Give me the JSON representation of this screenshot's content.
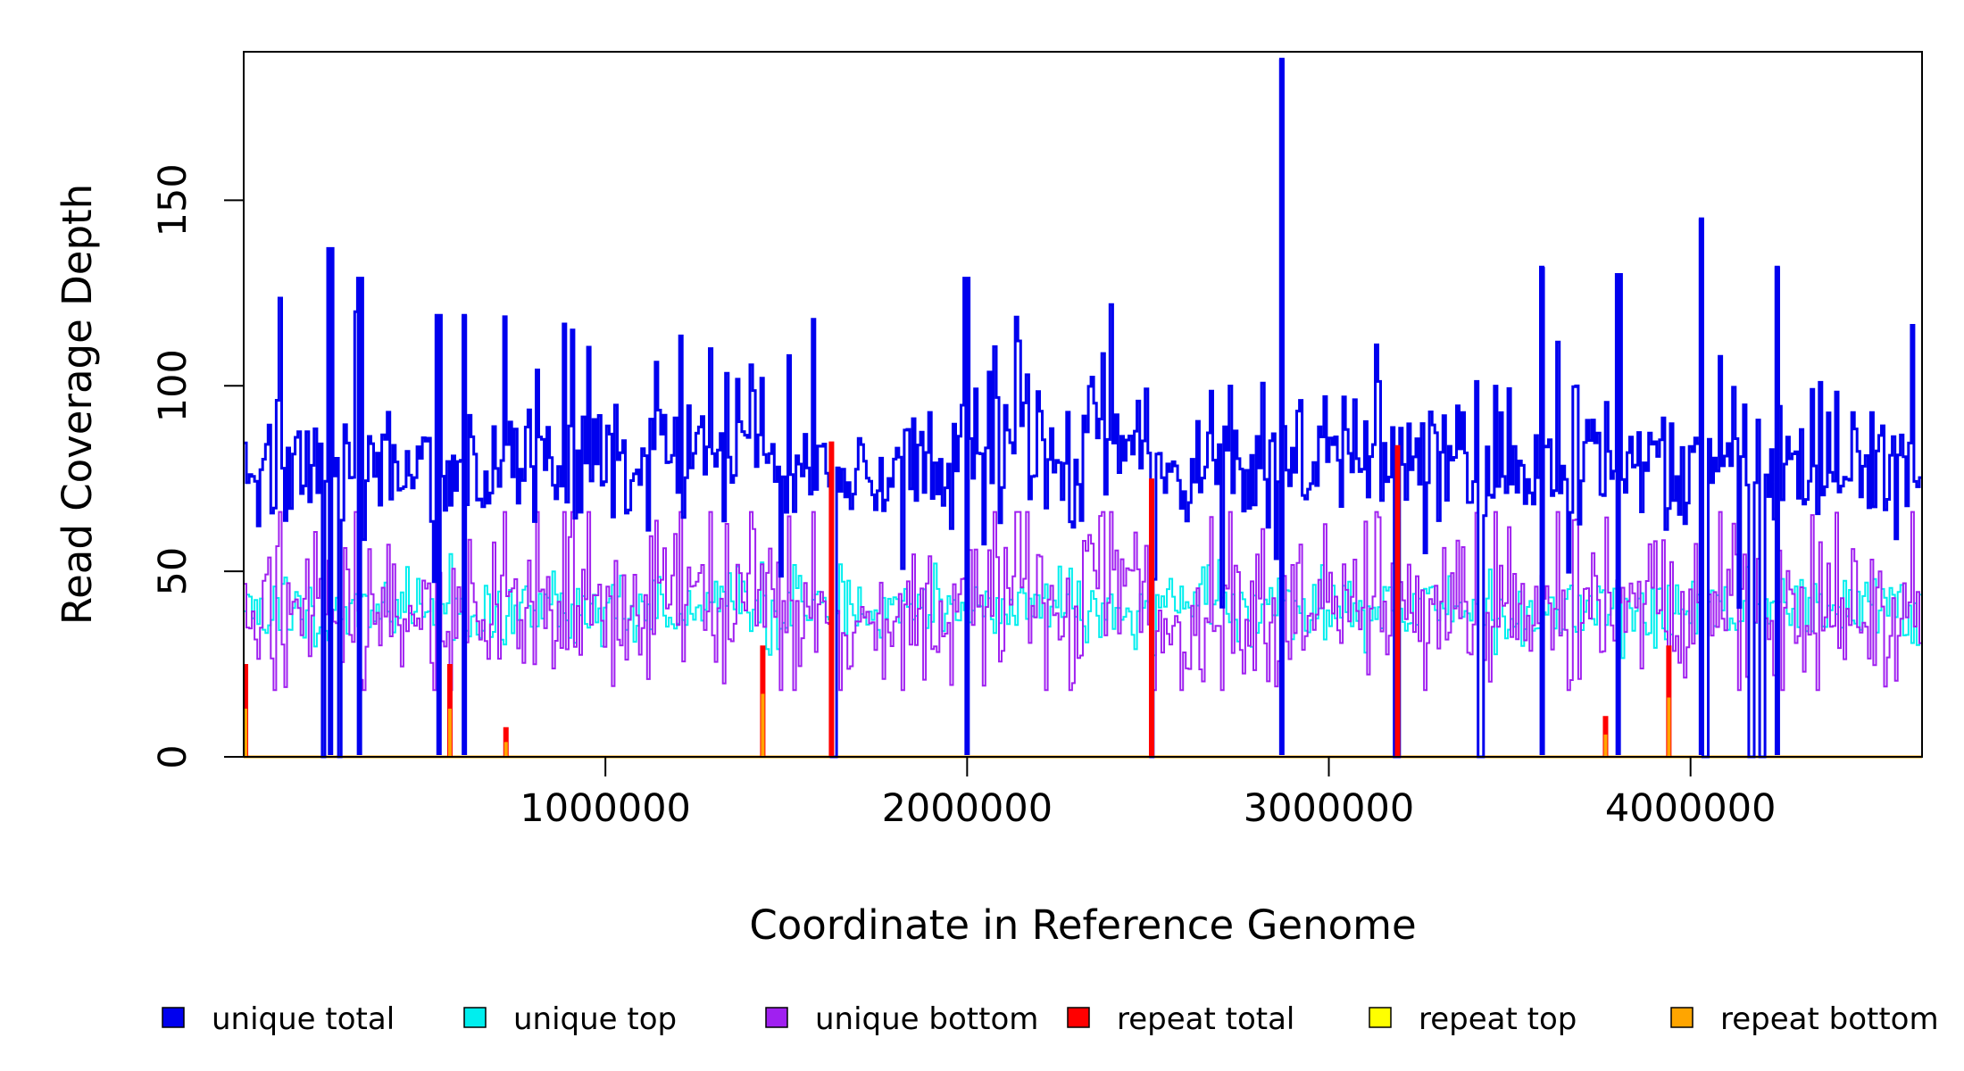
{
  "chart_data": {
    "type": "line",
    "title": "",
    "xlabel": "Coordinate in Reference Genome",
    "ylabel": "Read Coverage Depth",
    "xlim": [
      1,
      4640000
    ],
    "ylim": [
      0,
      190
    ],
    "x_ticks": [
      1000000,
      2000000,
      3000000,
      4000000
    ],
    "x_tick_labels": [
      "1000000",
      "2000000",
      "3000000",
      "4000000"
    ],
    "y_ticks": [
      0,
      50,
      100,
      150
    ],
    "y_tick_labels": [
      "0",
      "50",
      "100",
      "150"
    ],
    "grid": false,
    "legend_position": "bottom",
    "series": [
      {
        "name": "unique total",
        "color": "#0000ee",
        "approx_mean": 80,
        "range": [
          0,
          188
        ]
      },
      {
        "name": "unique top",
        "color": "#00eeee",
        "approx_mean": 40,
        "range": [
          0,
          66
        ]
      },
      {
        "name": "unique bottom",
        "color": "#a020f0",
        "approx_mean": 40,
        "range": [
          0,
          66
        ]
      },
      {
        "name": "repeat total",
        "color": "#ff0000",
        "approx_mean": 0
      },
      {
        "name": "repeat top",
        "color": "#ffff00",
        "approx_mean": 0
      },
      {
        "name": "repeat bottom",
        "color": "#ffa500",
        "approx_mean": 0
      }
    ],
    "unique_total_peaks": [
      {
        "x": 240000,
        "y": 137
      },
      {
        "x": 320000,
        "y": 129
      },
      {
        "x": 540000,
        "y": 119
      },
      {
        "x": 610000,
        "y": 119
      },
      {
        "x": 2000000,
        "y": 129
      },
      {
        "x": 2870000,
        "y": 188
      },
      {
        "x": 3590000,
        "y": 132
      },
      {
        "x": 3800000,
        "y": 130
      },
      {
        "x": 4030000,
        "y": 145
      },
      {
        "x": 4240000,
        "y": 132
      }
    ],
    "coverage_gaps": [
      220000,
      265000,
      1630000,
      2510000,
      3190000,
      3420000,
      4040000,
      4170000,
      4200000
    ],
    "repeat_spikes": [
      {
        "x": 5000,
        "total": 25,
        "bottom": 13
      },
      {
        "x": 570000,
        "total": 25,
        "bottom": 13
      },
      {
        "x": 725000,
        "total": 8,
        "bottom": 4
      },
      {
        "x": 1435000,
        "total": 30,
        "bottom": 17
      },
      {
        "x": 1625000,
        "total": 85,
        "bottom": 0
      },
      {
        "x": 2510000,
        "total": 75,
        "bottom": 0
      },
      {
        "x": 3190000,
        "total": 84,
        "bottom": 0
      },
      {
        "x": 3765000,
        "total": 11,
        "bottom": 6
      },
      {
        "x": 3940000,
        "total": 30,
        "bottom": 16
      }
    ]
  }
}
